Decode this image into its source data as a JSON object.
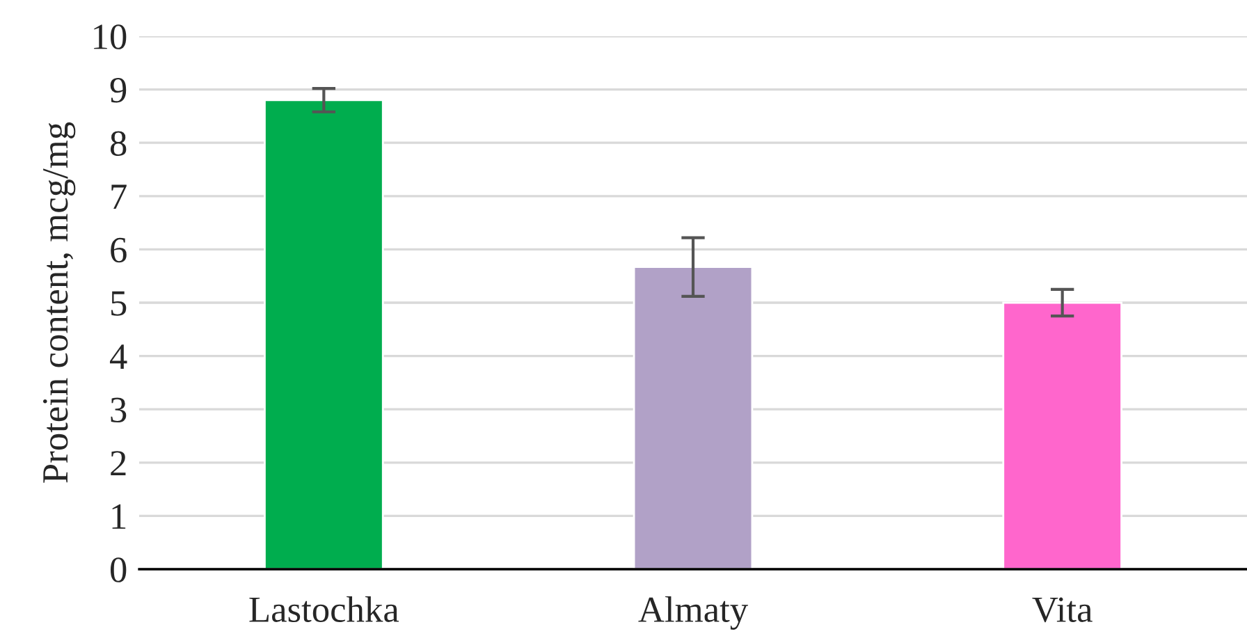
{
  "chart_data": {
    "type": "bar",
    "ylabel": "Protein content, mcg/mg",
    "categories": [
      "Lastochka",
      "Almaty",
      "Vita"
    ],
    "values": [
      8.8,
      5.67,
      5.0
    ],
    "errors": [
      0.22,
      0.55,
      0.25
    ],
    "colors": [
      "#00ad4e",
      "#b1a1c7",
      "#ff66cc"
    ],
    "ylim": [
      0,
      10
    ],
    "yticks": [
      0,
      1,
      2,
      3,
      4,
      5,
      6,
      7,
      8,
      9,
      10
    ],
    "grid": "y",
    "legend": false
  }
}
